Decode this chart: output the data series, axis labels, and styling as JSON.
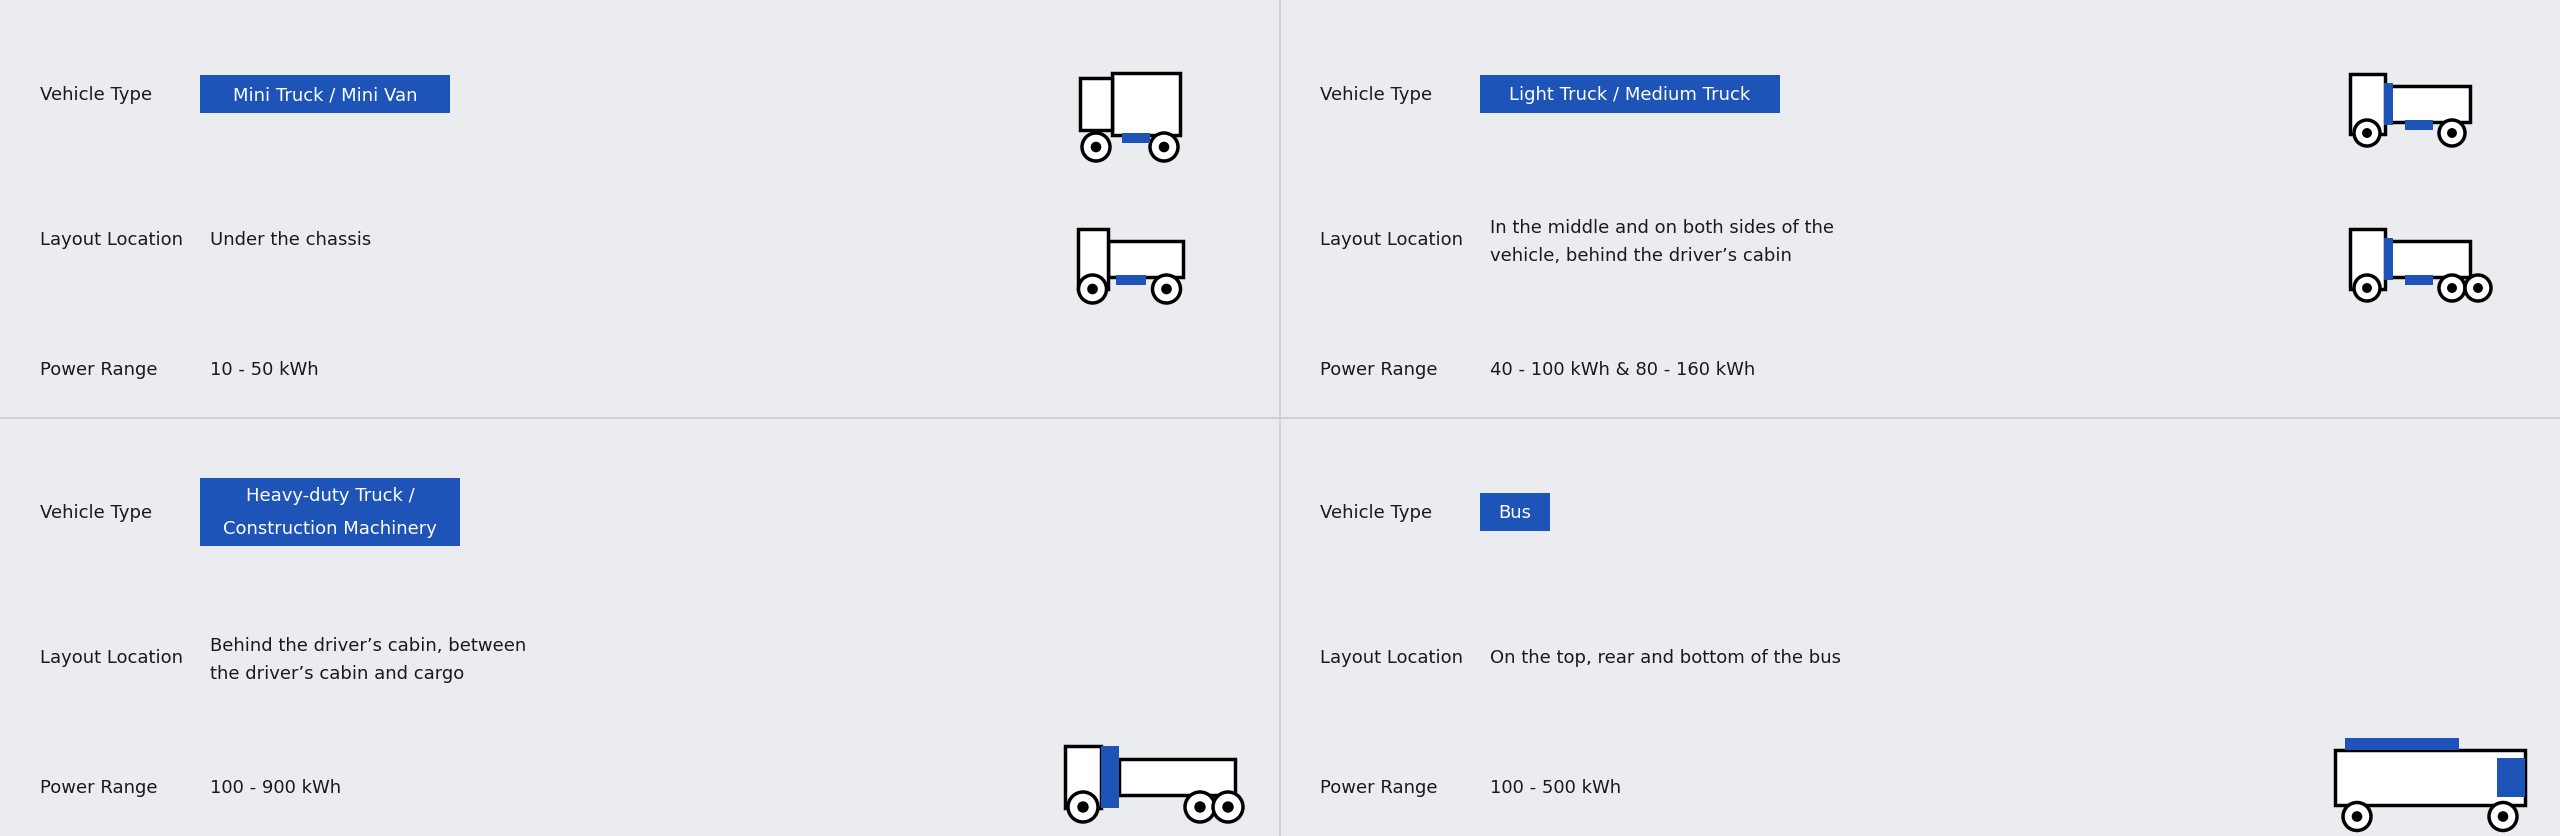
{
  "bg_color": "#eaecf0",
  "blue_color": "#1e54b7",
  "text_color": "#1a1a1a",
  "divider_color": "#cccccc",
  "panels": [
    {
      "id": "mini_truck",
      "vehicle_type_label": "Vehicle Type",
      "vehicle_type_value": "Mini Truck / Mini Van",
      "layout_label": "Layout Location",
      "layout_value": "Under the chassis",
      "power_label": "Power Range",
      "power_value": "10 - 50 kWh",
      "col": 0,
      "row": 0
    },
    {
      "id": "light_truck",
      "vehicle_type_label": "Vehicle Type",
      "vehicle_type_value": "Light Truck / Medium Truck",
      "layout_label": "Layout Location",
      "layout_value": "In the middle and on both sides of the\nvehicle, behind the driver’s cabin",
      "power_label": "Power Range",
      "power_value": "40 - 100 kWh & 80 - 160 kWh",
      "col": 1,
      "row": 0
    },
    {
      "id": "heavy_truck",
      "vehicle_type_label": "Vehicle Type",
      "vehicle_type_value": "Heavy-duty Truck /\nConstruction Machinery",
      "layout_label": "Layout Location",
      "layout_value": "Behind the driver’s cabin, between\nthe driver’s cabin and cargo",
      "power_label": "Power Range",
      "power_value": "100 - 900 kWh",
      "col": 0,
      "row": 1
    },
    {
      "id": "bus",
      "vehicle_type_label": "Vehicle Type",
      "vehicle_type_value": "Bus",
      "layout_label": "Layout Location",
      "layout_value": "On the top, rear and bottom of the bus",
      "power_label": "Power Range",
      "power_value": "100 - 500 kWh",
      "col": 1,
      "row": 1
    }
  ],
  "label_fontsize": 13,
  "value_fontsize": 13,
  "badge_fontsize": 13
}
